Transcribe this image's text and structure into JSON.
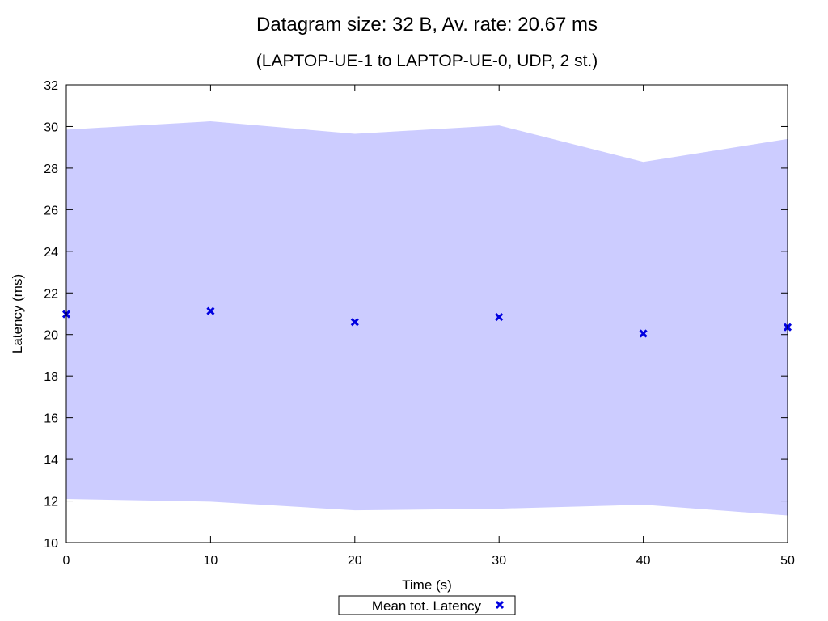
{
  "chart_data": {
    "type": "scatter",
    "title": "Datagram size: 32 B, Av. rate: 20.67 ms",
    "subtitle": "(LAPTOP-UE-1 to LAPTOP-UE-0, UDP, 2 st.)",
    "xlabel": "Time (s)",
    "ylabel": "Latency (ms)",
    "xlim": [
      0,
      50
    ],
    "ylim": [
      10,
      32
    ],
    "x_ticks": [
      0,
      10,
      20,
      30,
      40,
      50
    ],
    "y_ticks": [
      10,
      12,
      14,
      16,
      18,
      20,
      22,
      24,
      26,
      28,
      30,
      32
    ],
    "grid": false,
    "legend_position": "bottom-center",
    "series": [
      {
        "name": "Mean tot. Latency",
        "marker": "x",
        "color": "#0000e0",
        "x": [
          0,
          10,
          20,
          30,
          40,
          50
        ],
        "y": [
          20.98,
          21.13,
          20.6,
          20.84,
          20.05,
          20.35
        ]
      }
    ],
    "band": {
      "color": "#ccccff",
      "x": [
        0,
        10,
        20,
        30,
        40,
        50
      ],
      "upper": [
        29.85,
        30.25,
        29.65,
        30.05,
        28.3,
        29.4
      ],
      "lower": [
        12.1,
        11.97,
        11.55,
        11.63,
        11.82,
        11.3
      ]
    }
  }
}
